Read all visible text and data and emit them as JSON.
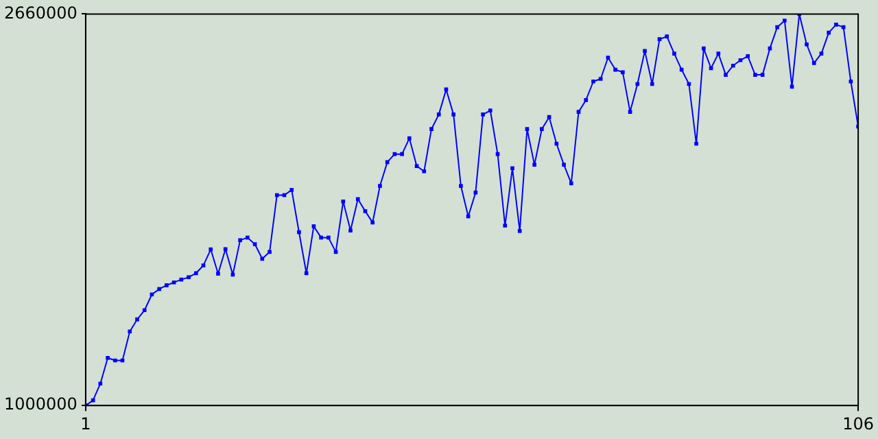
{
  "chart_data": {
    "type": "line",
    "marker": "square",
    "grid": false,
    "legend": false,
    "x": [
      1,
      2,
      3,
      4,
      5,
      6,
      7,
      8,
      9,
      10,
      11,
      12,
      13,
      14,
      15,
      16,
      17,
      18,
      19,
      20,
      21,
      22,
      23,
      24,
      25,
      26,
      27,
      28,
      29,
      30,
      31,
      32,
      33,
      34,
      35,
      36,
      37,
      38,
      39,
      40,
      41,
      42,
      43,
      44,
      45,
      46,
      47,
      48,
      49,
      50,
      51,
      52,
      53,
      54,
      55,
      56,
      57,
      58,
      59,
      60,
      61,
      62,
      63,
      64,
      65,
      66,
      67,
      68,
      69,
      70,
      71,
      72,
      73,
      74,
      75,
      76,
      77,
      78,
      79,
      80,
      81,
      82,
      83,
      84,
      85,
      86,
      87,
      88,
      89,
      90,
      91,
      92,
      93,
      94,
      95,
      96,
      97,
      98,
      99,
      100,
      101,
      102,
      103,
      104,
      105,
      106
    ],
    "series": [
      {
        "color": "#0000ff",
        "values": [
          1000000,
          1022000,
          1093000,
          1202000,
          1191000,
          1191000,
          1314000,
          1365000,
          1404000,
          1471000,
          1494000,
          1510000,
          1522000,
          1534000,
          1544000,
          1561000,
          1594000,
          1662000,
          1559000,
          1663000,
          1555000,
          1701000,
          1712000,
          1684000,
          1622000,
          1651000,
          1892000,
          1892000,
          1914000,
          1735000,
          1561000,
          1760000,
          1712000,
          1712000,
          1651000,
          1865000,
          1742000,
          1875000,
          1824000,
          1776000,
          1931000,
          2032000,
          2066000,
          2066000,
          2133000,
          2015000,
          1993000,
          2172000,
          2234000,
          2340000,
          2234000,
          1931000,
          1802000,
          1903000,
          2234000,
          2251000,
          2066000,
          1763000,
          2006000,
          1740000,
          2172000,
          2021000,
          2172000,
          2223000,
          2110000,
          2021000,
          1942000,
          2245000,
          2295000,
          2374000,
          2385000,
          2475000,
          2424000,
          2413000,
          2245000,
          2363000,
          2503000,
          2363000,
          2553000,
          2565000,
          2492000,
          2424000,
          2363000,
          2110000,
          2514000,
          2430000,
          2492000,
          2402000,
          2441000,
          2464000,
          2481000,
          2402000,
          2402000,
          2514000,
          2604000,
          2632000,
          2352000,
          2660000,
          2531000,
          2452000,
          2492000,
          2581000,
          2615000,
          2604000,
          2374000,
          2183000
        ]
      }
    ],
    "xlim": [
      1,
      106
    ],
    "xticks": [
      1,
      106
    ],
    "ylim": [
      1000000,
      2660000
    ],
    "yticks": [
      1000000,
      2660000
    ]
  }
}
